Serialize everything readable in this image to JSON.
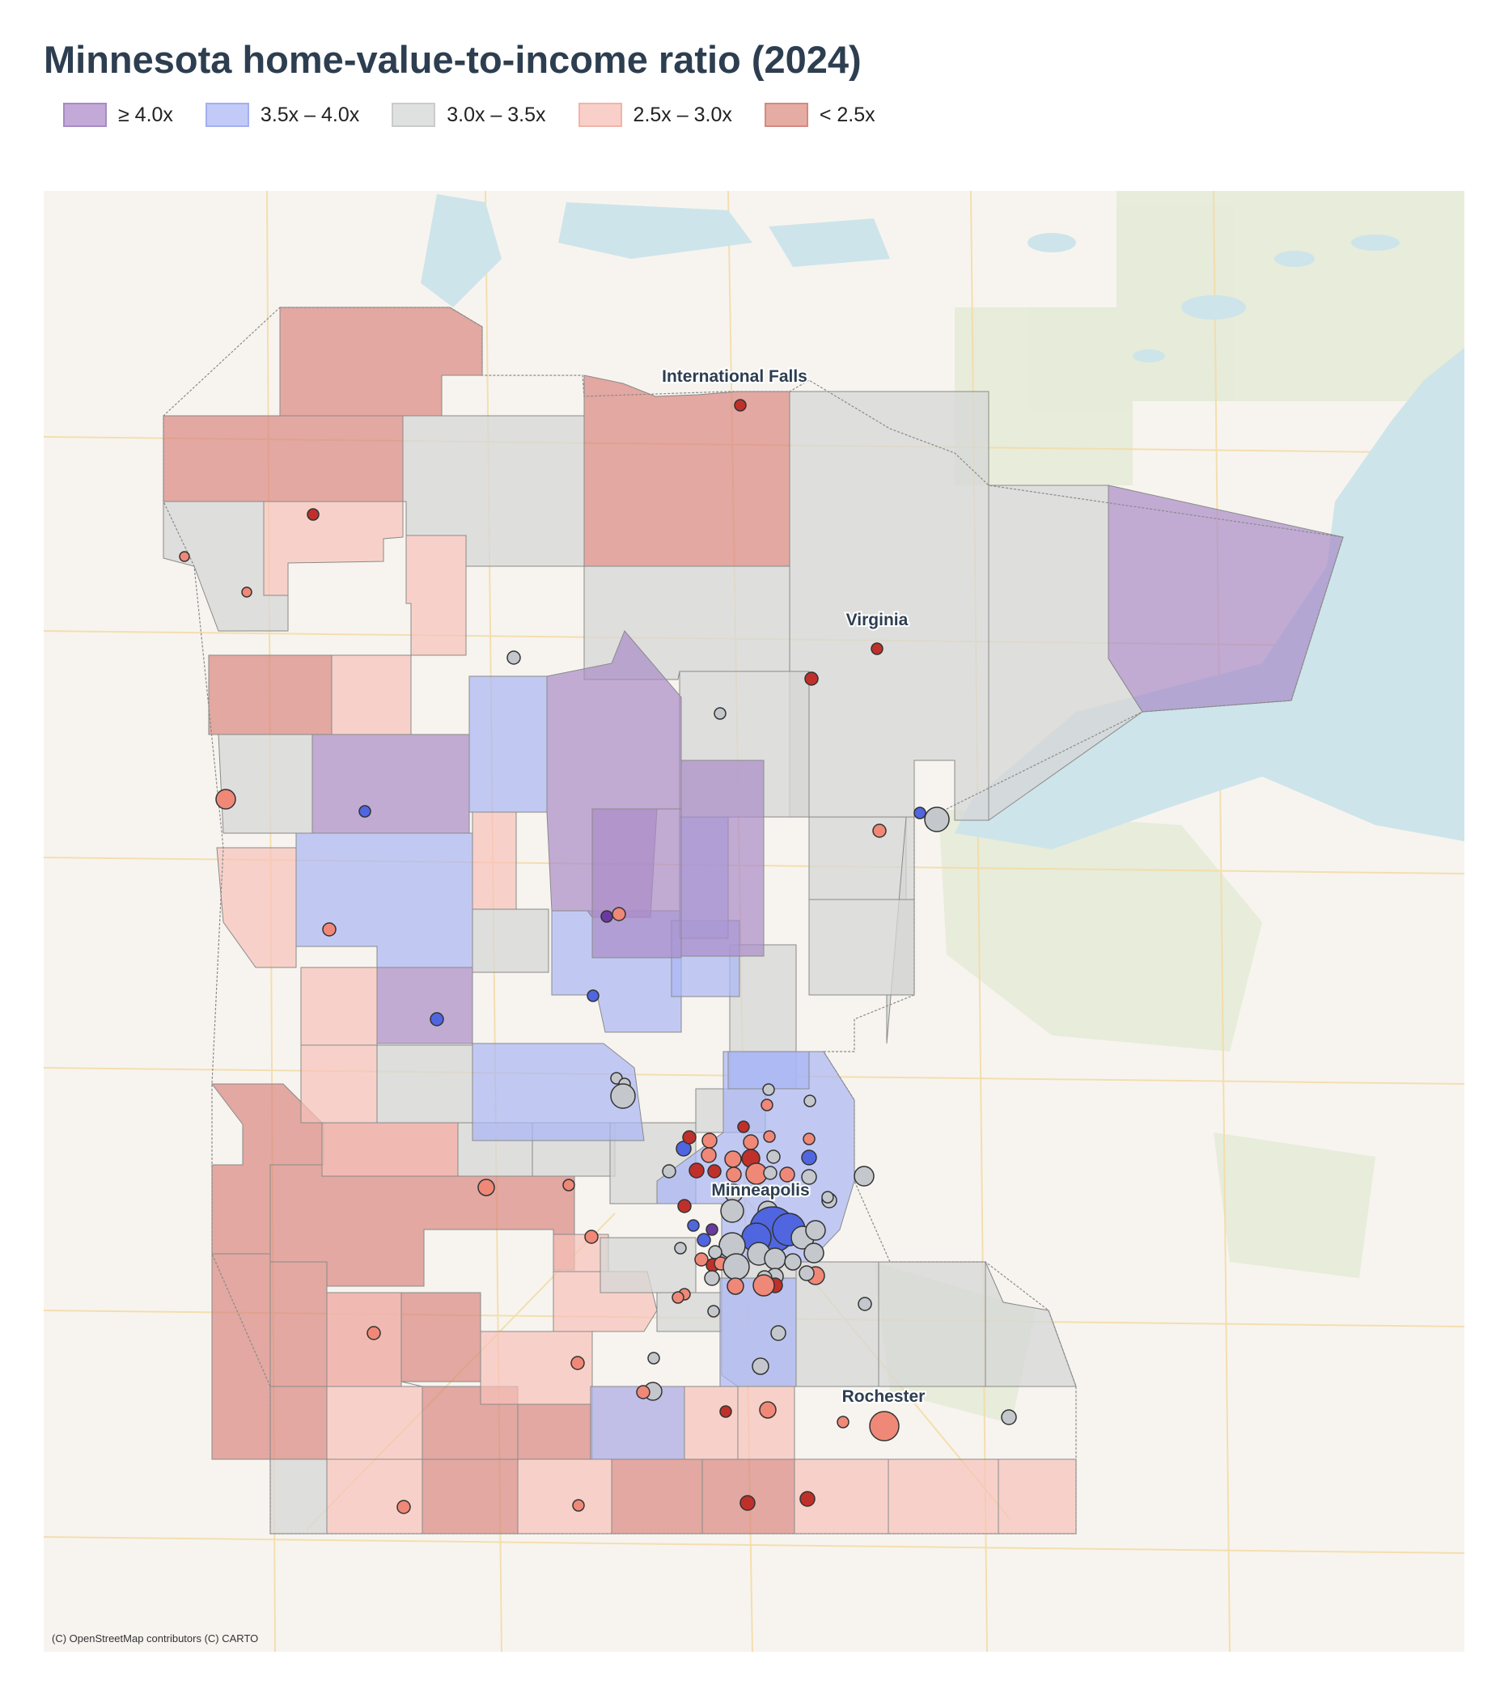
{
  "title": "Minnesota home-value-to-income ratio (2024)",
  "legend": [
    {
      "label": "≥ 4.0x",
      "fill": "#c2a9d8",
      "stroke": "#a68bc4"
    },
    {
      "label": "3.5x – 4.0x",
      "fill": "#c2caf7",
      "stroke": "#a3b0ef"
    },
    {
      "label": "3.0x – 3.5x",
      "fill": "#dfe1e0",
      "stroke": "#c9cccb"
    },
    {
      "label": "2.5x – 3.0x",
      "fill": "#f8d0c9",
      "stroke": "#efb4aa"
    },
    {
      "label": "< 2.5x",
      "fill": "#e5aca4",
      "stroke": "#d28a80"
    }
  ],
  "colors": {
    "ge40": "#a98bc8",
    "c35_40": "#a9b6f5",
    "c30_35": "#d5d7d6",
    "c25_30": "#f7c2b9",
    "lt25": "#d98880",
    "dot_ge40": "#6b3aa0",
    "dot_35_40": "#4f66e0",
    "dot_30_35": "#c4c8cc",
    "dot_25_30": "#f08878",
    "dot_lt25": "#c0302a",
    "water": "#cde4ea",
    "land": "#f7f4ef"
  },
  "cities": [
    {
      "name": "International Falls"
    },
    {
      "name": "Virginia"
    },
    {
      "name": "Minneapolis"
    },
    {
      "name": "Rochester"
    }
  ],
  "attribution": "(C) OpenStreetMap contributors (C) CARTO"
}
